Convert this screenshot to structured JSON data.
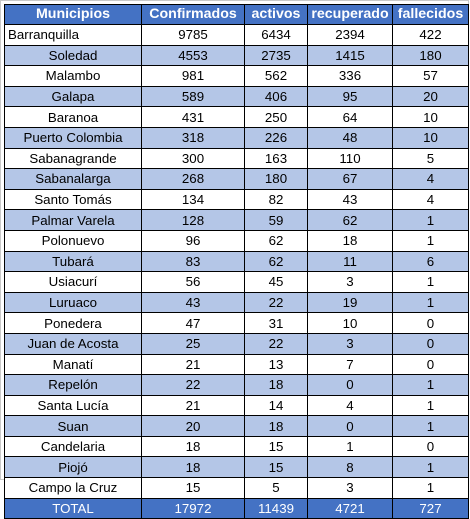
{
  "table": {
    "headers": [
      "Municipios",
      "Confirmados",
      "activos",
      "recuperado",
      "fallecidos"
    ],
    "rows": [
      [
        "Barranquilla",
        "9785",
        "6434",
        "2394",
        "422"
      ],
      [
        "Soledad",
        "4553",
        "2735",
        "1415",
        "180"
      ],
      [
        "Malambo",
        "981",
        "562",
        "336",
        "57"
      ],
      [
        "Galapa",
        "589",
        "406",
        "95",
        "20"
      ],
      [
        "Baranoa",
        "431",
        "250",
        "64",
        "10"
      ],
      [
        "Puerto Colombia",
        "318",
        "226",
        "48",
        "10"
      ],
      [
        "Sabanagrande",
        "300",
        "163",
        "110",
        "5"
      ],
      [
        "Sabanalarga",
        "268",
        "180",
        "67",
        "4"
      ],
      [
        "Santo Tomás",
        "134",
        "82",
        "43",
        "4"
      ],
      [
        "Palmar Varela",
        "128",
        "59",
        "62",
        "1"
      ],
      [
        "Polonuevo",
        "96",
        "62",
        "18",
        "1"
      ],
      [
        "Tubará",
        "83",
        "62",
        "11",
        "6"
      ],
      [
        "Usiacurí",
        "56",
        "45",
        "3",
        "1"
      ],
      [
        "Luruaco",
        "43",
        "22",
        "19",
        "1"
      ],
      [
        "Ponedera",
        "47",
        "31",
        "10",
        "0"
      ],
      [
        "Juan de Acosta",
        "25",
        "22",
        "3",
        "0"
      ],
      [
        "Manatí",
        "21",
        "13",
        "7",
        "0"
      ],
      [
        "Repelón",
        "22",
        "18",
        "0",
        "1"
      ],
      [
        "Santa Lucía",
        "21",
        "14",
        "4",
        "1"
      ],
      [
        "Suan",
        "20",
        "18",
        "0",
        "1"
      ],
      [
        "Candelaria",
        "18",
        "15",
        "1",
        "0"
      ],
      [
        "Piojó",
        "18",
        "15",
        "8",
        "1"
      ],
      [
        "Campo la Cruz",
        "15",
        "5",
        "3",
        "1"
      ]
    ],
    "total": [
      "TOTAL",
      "17972",
      "11439",
      "4721",
      "727"
    ]
  },
  "colors": {
    "header_bg": "#4472c4",
    "band_bg": "#b4c6e7",
    "plain_bg": "#ffffff",
    "header_text": "#ffffff"
  }
}
